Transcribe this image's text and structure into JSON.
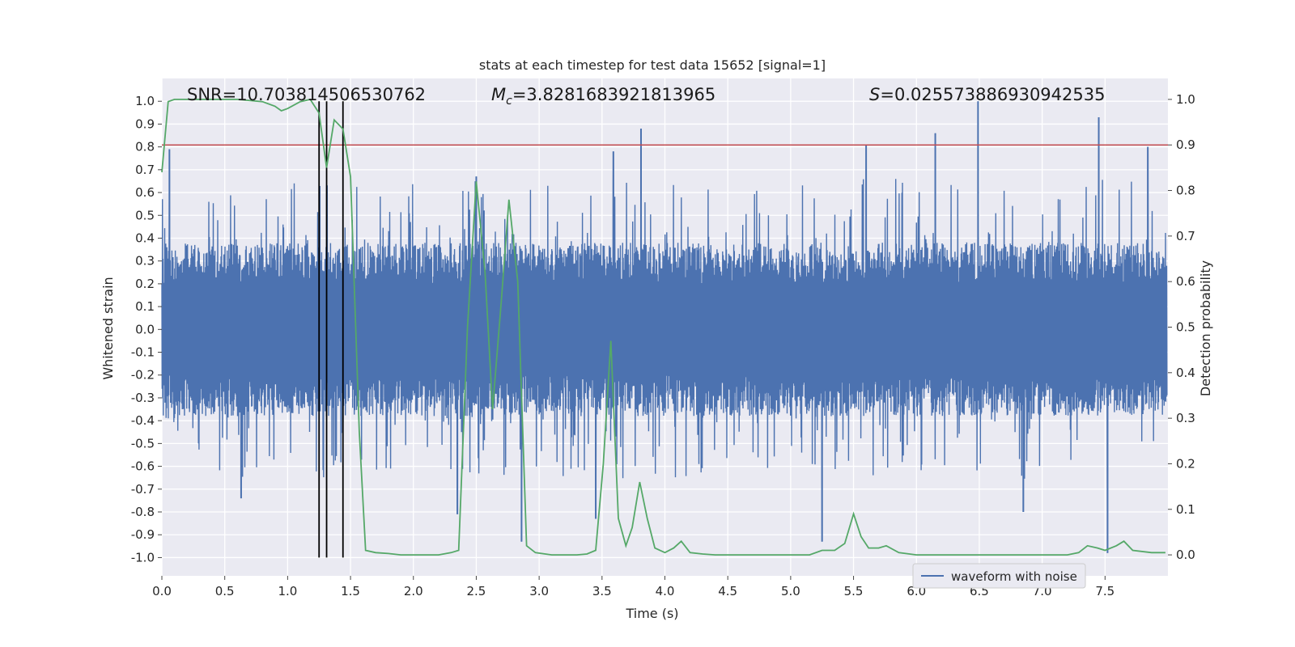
{
  "chart_data": {
    "type": "line",
    "title": "stats at each timestep for test data 15652 [signal=1]",
    "xlabel": "Time (s)",
    "ylabel_left": "Whitened strain",
    "ylabel_right": "Detection probability",
    "xlim": [
      0,
      8.0
    ],
    "ylim_left": [
      -1.08,
      1.1
    ],
    "ylim_right": [
      -0.046,
      1.046
    ],
    "x_ticks": [
      "0.0",
      "0.5",
      "1.0",
      "1.5",
      "2.0",
      "2.5",
      "3.0",
      "3.5",
      "4.0",
      "4.5",
      "5.0",
      "5.5",
      "6.0",
      "6.5",
      "7.0",
      "7.5"
    ],
    "y_left_ticks": [
      "1.0",
      "0.9",
      "0.8",
      "0.7",
      "0.6",
      "0.5",
      "0.4",
      "0.3",
      "0.2",
      "0.1",
      "0.0",
      "-0.1",
      "-0.2",
      "-0.3",
      "-0.4",
      "-0.5",
      "-0.6",
      "-0.7",
      "-0.8",
      "-0.9",
      "-1.0"
    ],
    "y_right_ticks": [
      "1.0",
      "0.9",
      "0.8",
      "0.7",
      "0.6",
      "0.5",
      "0.4",
      "0.3",
      "0.2",
      "0.1",
      "0.0"
    ],
    "annotations": {
      "snr_text": "SNR=10.703814506530762",
      "mc_symbol": "M",
      "mc_sub": "c",
      "mc_value": "=3.8281683921813965",
      "s_symbol": "S",
      "s_value": "=0.025573886930942535"
    },
    "threshold": {
      "probability": 0.9,
      "color": "#c44e52"
    },
    "vertical_markers_s": [
      1.25,
      1.31,
      1.44
    ],
    "legend": {
      "label": "waveform with noise",
      "location": "lower-right"
    },
    "series": [
      {
        "name": "waveform with noise",
        "color": "#4c72b0",
        "description": "whitened strain noise, dense band approx -0.4..0.4 with spikes to +1.0 and -0.98",
        "spikes": [
          {
            "t": 0.06,
            "v": 0.79
          },
          {
            "t": 3.81,
            "v": 0.88
          },
          {
            "t": 6.49,
            "v": 1.0
          },
          {
            "t": 7.45,
            "v": 0.93
          },
          {
            "t": 5.6,
            "v": 0.81
          },
          {
            "t": 6.15,
            "v": 0.86
          },
          {
            "t": 7.84,
            "v": 0.8
          },
          {
            "t": 3.59,
            "v": 0.78
          },
          {
            "t": 2.5,
            "v": 0.67
          },
          {
            "t": 0.63,
            "v": -0.74
          },
          {
            "t": 2.86,
            "v": -0.93
          },
          {
            "t": 3.45,
            "v": -0.83
          },
          {
            "t": 5.25,
            "v": -0.93
          },
          {
            "t": 7.52,
            "v": -0.98
          },
          {
            "t": 6.85,
            "v": -0.8
          },
          {
            "t": 2.35,
            "v": -0.81
          }
        ]
      },
      {
        "name": "detection probability",
        "color": "#55a868",
        "axis": "right",
        "x": [
          0.0,
          0.05,
          0.1,
          0.2,
          0.4,
          0.6,
          0.8,
          0.9,
          0.95,
          1.0,
          1.1,
          1.18,
          1.25,
          1.31,
          1.37,
          1.44,
          1.5,
          1.57,
          1.62,
          1.7,
          1.8,
          1.9,
          2.0,
          2.1,
          2.2,
          2.3,
          2.36,
          2.43,
          2.5,
          2.57,
          2.63,
          2.7,
          2.76,
          2.83,
          2.9,
          2.97,
          3.1,
          3.3,
          3.38,
          3.45,
          3.51,
          3.57,
          3.63,
          3.69,
          3.74,
          3.8,
          3.86,
          3.92,
          4.0,
          4.07,
          4.13,
          4.2,
          4.3,
          4.4,
          4.6,
          4.8,
          5.0,
          5.15,
          5.25,
          5.35,
          5.43,
          5.5,
          5.56,
          5.62,
          5.7,
          5.76,
          5.86,
          6.0,
          6.3,
          6.6,
          6.9,
          7.2,
          7.29,
          7.36,
          7.44,
          7.5,
          7.59,
          7.65,
          7.72,
          7.87,
          7.98
        ],
        "values": [
          0.84,
          0.995,
          1.0,
          1.0,
          1.0,
          1.0,
          0.995,
          0.985,
          0.975,
          0.98,
          0.995,
          1.0,
          0.97,
          0.85,
          0.955,
          0.935,
          0.83,
          0.27,
          0.01,
          0.005,
          0.003,
          0.0,
          0.0,
          0.0,
          0.0,
          0.005,
          0.01,
          0.5,
          0.82,
          0.62,
          0.32,
          0.56,
          0.78,
          0.6,
          0.02,
          0.005,
          0.0,
          0.0,
          0.002,
          0.01,
          0.2,
          0.47,
          0.08,
          0.02,
          0.06,
          0.16,
          0.08,
          0.015,
          0.005,
          0.015,
          0.03,
          0.005,
          0.002,
          0.0,
          0.0,
          0.0,
          0.0,
          0.0,
          0.01,
          0.01,
          0.025,
          0.09,
          0.04,
          0.015,
          0.015,
          0.02,
          0.005,
          0.0,
          0.0,
          0.0,
          0.0,
          0.0,
          0.005,
          0.02,
          0.015,
          0.01,
          0.02,
          0.03,
          0.01,
          0.005,
          0.005
        ]
      }
    ]
  }
}
